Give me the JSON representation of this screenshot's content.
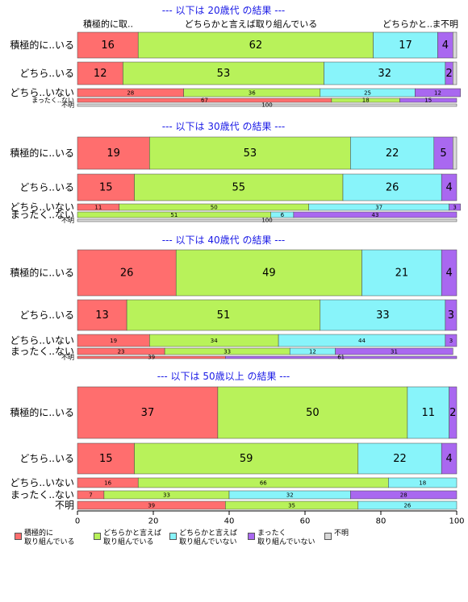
{
  "chart_data": {
    "type": "bar",
    "orientation": "horizontal",
    "stacked": "percent",
    "xlim": [
      0,
      100
    ],
    "xticks": [
      0,
      20,
      40,
      60,
      80,
      100
    ],
    "header_labels": [
      "積極的に取..",
      "どちらかと言えば取り組んでいる",
      "どちらかと..",
      "ま",
      "不明"
    ],
    "legend": [
      {
        "name": "積極的に\n取り組んでいる",
        "color": "#ff6e6e"
      },
      {
        "name": "どちらかと言えば\n取り組んでいる",
        "color": "#b8f25a"
      },
      {
        "name": "どちらかと言えば\n取り組んでいない",
        "color": "#88f4fa"
      },
      {
        "name": "まったく\n取り組んでいない",
        "color": "#a968f0"
      },
      {
        "name": "不明",
        "color": "#d9d9d9"
      }
    ],
    "panels": [
      {
        "title": "--- 以下は 20歳代 の結果 ---",
        "rows": [
          {
            "label": "積極的に..いる",
            "values": [
              16,
              62,
              17,
              4,
              1
            ]
          },
          {
            "label": "どちら..いる",
            "values": [
              12,
              53,
              32,
              2,
              1
            ]
          },
          {
            "label": "どちら..いない",
            "values": [
              28,
              36,
              25,
              12,
              0
            ]
          },
          {
            "label": "まったく..ない",
            "values": [
              67,
              18,
              0,
              15,
              0
            ]
          },
          {
            "label": "不明",
            "values": [
              0,
              0,
              0,
              0,
              100
            ]
          }
        ]
      },
      {
        "title": "--- 以下は 30歳代 の結果 ---",
        "rows": [
          {
            "label": "積極的に..いる",
            "values": [
              19,
              53,
              22,
              5,
              1
            ]
          },
          {
            "label": "どちら..いる",
            "values": [
              15,
              55,
              26,
              4,
              0
            ]
          },
          {
            "label": "どちら..いない",
            "values": [
              11,
              50,
              37,
              3,
              0
            ]
          },
          {
            "label": "まったく..ない",
            "values": [
              0,
              51,
              6,
              43,
              0
            ]
          },
          {
            "label": "不明",
            "values": [
              0,
              0,
              0,
              0,
              100
            ]
          }
        ]
      },
      {
        "title": "--- 以下は 40歳代 の結果 ---",
        "rows": [
          {
            "label": "積極的に..いる",
            "values": [
              26,
              49,
              21,
              4,
              0
            ]
          },
          {
            "label": "どちら..いる",
            "values": [
              13,
              51,
              33,
              3,
              0
            ]
          },
          {
            "label": "どちら..いない",
            "values": [
              19,
              34,
              44,
              3,
              0
            ]
          },
          {
            "label": "まったく..ない",
            "values": [
              23,
              33,
              12,
              31,
              0
            ]
          },
          {
            "label": "不明",
            "values": [
              39,
              0,
              0,
              61,
              0
            ]
          }
        ]
      },
      {
        "title": "--- 以下は 50歳以上 の結果 ---",
        "rows": [
          {
            "label": "積極的に..いる",
            "values": [
              37,
              50,
              11,
              2,
              0
            ]
          },
          {
            "label": "どちら..いる",
            "values": [
              15,
              59,
              22,
              4,
              0
            ]
          },
          {
            "label": "どちら..いない",
            "values": [
              16,
              66,
              18,
              0,
              0
            ]
          },
          {
            "label": "まったく..ない",
            "values": [
              7,
              33,
              32,
              28,
              0
            ]
          },
          {
            "label": "不明",
            "values": [
              39,
              35,
              26,
              0,
              0
            ]
          }
        ]
      }
    ]
  }
}
